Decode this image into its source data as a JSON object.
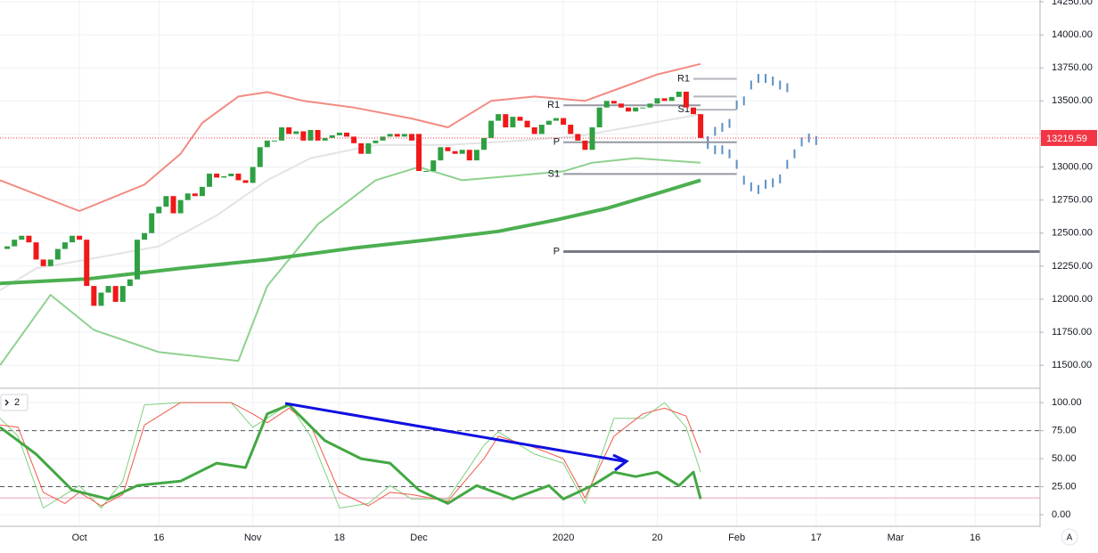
{
  "chart_data": [
    {
      "type": "candlestick",
      "axis_button": "A",
      "xlim": [
        -1,
        143
      ],
      "xticks": [
        {
          "value": 10,
          "label": "Oct"
        },
        {
          "value": 21,
          "label": "16"
        },
        {
          "value": 34,
          "label": "Nov"
        },
        {
          "value": 46,
          "label": "18"
        },
        {
          "value": 57,
          "label": "Dec"
        },
        {
          "value": 77,
          "label": "2020"
        },
        {
          "value": 90,
          "label": "20"
        },
        {
          "value": 101,
          "label": "Feb"
        },
        {
          "value": 112,
          "label": "17"
        },
        {
          "value": 123,
          "label": "Mar"
        },
        {
          "value": 134,
          "label": "16"
        }
      ],
      "ylim": [
        11333,
        14250
      ],
      "yticks": [
        {
          "value": 11500,
          "label": "11500.00"
        },
        {
          "value": 11750,
          "label": "11750.00"
        },
        {
          "value": 12000,
          "label": "12000.00"
        },
        {
          "value": 12250,
          "label": "12250.00"
        },
        {
          "value": 12500,
          "label": "12500.00"
        },
        {
          "value": 12750,
          "label": "12750.00"
        },
        {
          "value": 13000,
          "label": "13000.00"
        },
        {
          "value": 13250,
          "label": "13250.00"
        },
        {
          "value": 13500,
          "label": "13500.00"
        },
        {
          "value": 13750,
          "label": "13750.00"
        },
        {
          "value": 14000,
          "label": "14000.00"
        },
        {
          "value": 14250,
          "label": "14250.00"
        }
      ],
      "grid": true,
      "up_color": "#2ea043",
      "down_color": "#f01818",
      "x": [
        0,
        1,
        2,
        3,
        4,
        5,
        6,
        7,
        8,
        9,
        10,
        11,
        12,
        13,
        14,
        15,
        16,
        17,
        18,
        19,
        20,
        21,
        22,
        23,
        24,
        25,
        26,
        27,
        28,
        29,
        30,
        31,
        32,
        33,
        34,
        35,
        36,
        37,
        38,
        39,
        40,
        41,
        42,
        43,
        44,
        45,
        46,
        47,
        48,
        49,
        50,
        51,
        52,
        53,
        54,
        55,
        56,
        57,
        58,
        59,
        60,
        61,
        62,
        63,
        64,
        65,
        66,
        67,
        68,
        69,
        70,
        71,
        72,
        73,
        74,
        75,
        76,
        77,
        78,
        79,
        80,
        81,
        82,
        83,
        84,
        85,
        86,
        87,
        88,
        89,
        90,
        91,
        92,
        93,
        94,
        95,
        96
      ],
      "open": [
        12380,
        12400,
        12450,
        12480,
        12430,
        12300,
        12250,
        12300,
        12380,
        12430,
        12480,
        12450,
        12100,
        11950,
        12050,
        12100,
        11980,
        12100,
        12150,
        12450,
        12500,
        12650,
        12700,
        12780,
        12650,
        12750,
        12800,
        12780,
        12850,
        12950,
        12920,
        12930,
        12950,
        12900,
        12880,
        13000,
        13150,
        13200,
        13200,
        13300,
        13250,
        13270,
        13200,
        13280,
        13200,
        13220,
        13240,
        13260,
        13230,
        13180,
        13100,
        13180,
        13200,
        13230,
        13250,
        13230,
        13250,
        13250,
        12970,
        12970,
        13050,
        13150,
        13120,
        13100,
        13130,
        13050,
        13130,
        13220,
        13350,
        13400,
        13300,
        13380,
        13350,
        13300,
        13250,
        13320,
        13350,
        13370,
        13320,
        13250,
        13200,
        13130,
        13300,
        13450,
        13500,
        13480,
        13450,
        13420,
        13450,
        13450,
        13480,
        13520,
        13500,
        13530,
        13570,
        13450,
        13400
      ],
      "close": [
        12400,
        12450,
        12480,
        12430,
        12300,
        12250,
        12300,
        12380,
        12430,
        12480,
        12450,
        12100,
        11950,
        12050,
        12100,
        11980,
        12100,
        12150,
        12450,
        12500,
        12650,
        12700,
        12780,
        12650,
        12750,
        12800,
        12780,
        12850,
        12950,
        12920,
        12930,
        12950,
        12900,
        12880,
        13000,
        13150,
        13200,
        13200,
        13300,
        13250,
        13270,
        13200,
        13280,
        13200,
        13220,
        13240,
        13260,
        13230,
        13180,
        13100,
        13180,
        13200,
        13230,
        13250,
        13230,
        13250,
        13200,
        12970,
        12970,
        13050,
        13150,
        13120,
        13100,
        13130,
        13050,
        13130,
        13220,
        13350,
        13400,
        13300,
        13380,
        13350,
        13300,
        13250,
        13320,
        13350,
        13370,
        13320,
        13250,
        13200,
        13130,
        13300,
        13450,
        13500,
        13480,
        13450,
        13420,
        13450,
        13450,
        13480,
        13520,
        13500,
        13530,
        13570,
        13450,
        13400,
        13220
      ],
      "series": [
        {
          "color": "#f28b82",
          "width": 2,
          "x": [
            -1,
            10,
            19,
            24,
            27,
            32,
            36,
            41,
            48,
            56,
            61,
            67,
            73,
            80,
            85,
            90,
            96
          ],
          "values": [
            12900,
            12667,
            12867,
            13100,
            13333,
            13533,
            13567,
            13500,
            13450,
            13367,
            13300,
            13500,
            13533,
            13500,
            13600,
            13700,
            13780
          ]
        },
        {
          "color": "#8fd18f",
          "width": 2,
          "x": [
            -1,
            6,
            12,
            21,
            32,
            36,
            43,
            51,
            57,
            63,
            70,
            77,
            81,
            87,
            96
          ],
          "values": [
            11500,
            12033,
            11767,
            11600,
            11533,
            12100,
            12567,
            12900,
            13000,
            12900,
            12933,
            12967,
            13033,
            13067,
            13033
          ]
        },
        {
          "color": "#e3e3e6",
          "width": 2,
          "x": [
            -1,
            4,
            11,
            21,
            29,
            36,
            42,
            51,
            61,
            71,
            79,
            86,
            96
          ],
          "values": [
            12067,
            12233,
            12300,
            12400,
            12633,
            12900,
            13067,
            13167,
            13167,
            13200,
            13233,
            13300,
            13400
          ]
        },
        {
          "color": "#4caf50",
          "width": 4,
          "x": [
            -1,
            11,
            24,
            36,
            48,
            58,
            68,
            76,
            83,
            90,
            96
          ],
          "values": [
            12120,
            12153,
            12233,
            12300,
            12387,
            12447,
            12513,
            12600,
            12687,
            12800,
            12900
          ]
        },
        {
          "color": "#5b8fc7",
          "width": 2,
          "style": "ticks",
          "x": [
            97,
            98,
            99,
            100,
            101,
            102,
            103,
            104,
            105,
            106,
            107,
            108
          ],
          "values": [
            13200,
            13270,
            13300,
            13330,
            13470,
            13500,
            13620,
            13670,
            13670,
            13650,
            13620,
            13600
          ]
        },
        {
          "color": "#5b8fc7",
          "width": 2,
          "style": "ticks",
          "x": [
            97,
            98,
            99,
            100,
            101,
            102,
            103,
            104,
            105,
            106,
            107,
            108,
            109,
            110,
            111,
            112
          ],
          "values": [
            13170,
            13130,
            13130,
            13100,
            13020,
            12900,
            12850,
            12830,
            12870,
            12880,
            12910,
            13020,
            13100,
            13190,
            13220,
            13200
          ]
        }
      ],
      "pivots": [
        {
          "label": "R1",
          "value": 13467,
          "x": [
            77,
            96
          ],
          "color": "#9598a1",
          "width": 2
        },
        {
          "label": "P",
          "value": 13187,
          "x": [
            77,
            101
          ],
          "color": "#9598a1",
          "width": 2
        },
        {
          "label": "S1",
          "value": 12947,
          "x": [
            77,
            101
          ],
          "color": "#9598a1",
          "width": 2
        },
        {
          "label": "P",
          "value": 12360,
          "x": [
            77,
            143
          ],
          "color": "#787b86",
          "width": 3
        },
        {
          "label": "R1",
          "value": 13667,
          "x": [
            95,
            101
          ],
          "color": "#b2b5be",
          "width": 2
        },
        {
          "value": 13533,
          "x": [
            95,
            101
          ],
          "color": "#b2b5be",
          "width": 2
        },
        {
          "label": "S1",
          "value": 13433,
          "x": [
            95,
            101
          ],
          "color": "#b2b5be",
          "width": 2
        }
      ],
      "last_price": 13219.59,
      "last_price_color": "#f23645"
    },
    {
      "type": "line",
      "label": "2",
      "ylim": [
        -9.5,
        112
      ],
      "yticks": [
        {
          "value": 0,
          "label": "0.00"
        },
        {
          "value": 25,
          "label": "25.00"
        },
        {
          "value": 50,
          "label": "50.00"
        },
        {
          "value": 75,
          "label": "75.00"
        },
        {
          "value": 100,
          "label": "100.00"
        }
      ],
      "grid": true,
      "levels": [
        {
          "value": 75,
          "style": "dashed",
          "color": "#555"
        },
        {
          "value": 25,
          "style": "dashed",
          "color": "#555"
        },
        {
          "value": 15,
          "style": "solid",
          "color": "#e8a0c0"
        }
      ],
      "series": [
        {
          "color": "#7fd07f",
          "width": 1,
          "x": [
            -1,
            1.5,
            5,
            8,
            10,
            13,
            16,
            19,
            24,
            31,
            34,
            36,
            39,
            42,
            46,
            50,
            53,
            56,
            61,
            66,
            68,
            73,
            77,
            80,
            84,
            88,
            91,
            94,
            96
          ],
          "values": [
            86,
            70,
            6,
            18,
            26,
            6,
            30,
            98,
            100,
            100,
            78,
            86,
            99,
            70,
            6,
            10,
            26,
            14,
            14,
            62,
            74,
            54,
            46,
            10,
            86,
            86,
            100,
            78,
            38
          ]
        },
        {
          "color": "#f05a4a",
          "width": 1,
          "x": [
            -1,
            1.5,
            5,
            8,
            10,
            13,
            16,
            19,
            24,
            31,
            34,
            36,
            39,
            42,
            46,
            50,
            53,
            56,
            61,
            66,
            68,
            73,
            77,
            80,
            84,
            88,
            91,
            94,
            96
          ],
          "values": [
            80,
            78,
            20,
            10,
            20,
            8,
            18,
            80,
            100,
            100,
            90,
            82,
            95,
            80,
            20,
            8,
            20,
            18,
            12,
            50,
            70,
            60,
            50,
            15,
            70,
            90,
            95,
            88,
            55
          ]
        },
        {
          "color": "#43a843",
          "width": 3,
          "x": [
            -1,
            4,
            9,
            14,
            18,
            24,
            29,
            33,
            36,
            39,
            44,
            49,
            53,
            57,
            61,
            65,
            70,
            75,
            77,
            81,
            84,
            87,
            90,
            93,
            95,
            96
          ],
          "values": [
            78,
            54,
            22,
            14,
            26,
            30,
            46,
            42,
            90,
            98,
            66,
            50,
            46,
            22,
            10,
            26,
            14,
            26,
            14,
            26,
            38,
            34,
            38,
            26,
            38,
            14
          ]
        }
      ]
    }
  ]
}
